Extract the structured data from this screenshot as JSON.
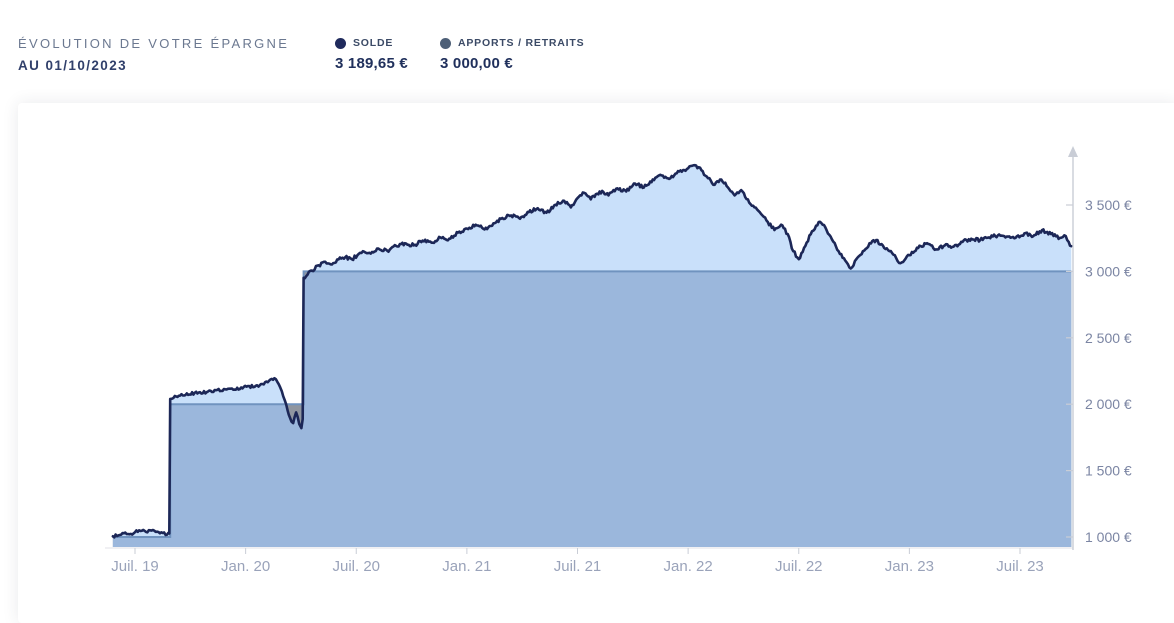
{
  "header": {
    "title": "ÉVOLUTION DE VOTRE ÉPARGNE",
    "subtitle": "AU 01/10/2023",
    "legend": [
      {
        "id": "solde",
        "label": "SOLDE",
        "value": "3 189,65 €",
        "color": "#1f2a5c"
      },
      {
        "id": "apports",
        "label": "APPORTS / RETRAITS",
        "value": "3 000,00 €",
        "color": "#4d5f77"
      }
    ]
  },
  "chart_data": {
    "type": "area",
    "title": "Évolution de votre épargne au 01/10/2023",
    "x_unit": "decimal_year",
    "x_range": [
      2019.4,
      2023.732
    ],
    "y_displayed_ticks_range": [
      1000,
      3500
    ],
    "grid": false,
    "legend_position": "top-outside",
    "y_axis_side": "right",
    "x_ticks": [
      {
        "t": 2019.5,
        "label": "Juil. 19"
      },
      {
        "t": 2020.0,
        "label": "Jan. 20"
      },
      {
        "t": 2020.5,
        "label": "Juil. 20"
      },
      {
        "t": 2021.0,
        "label": "Jan. 21"
      },
      {
        "t": 2021.5,
        "label": "Juil. 21"
      },
      {
        "t": 2022.0,
        "label": "Jan. 22"
      },
      {
        "t": 2022.5,
        "label": "Juil. 22"
      },
      {
        "t": 2023.0,
        "label": "Jan. 23"
      },
      {
        "t": 2023.5,
        "label": "Juil. 23"
      }
    ],
    "y_ticks": [
      {
        "value": 1000,
        "label": "1 000 €"
      },
      {
        "value": 1500,
        "label": "1 500 €"
      },
      {
        "value": 2000,
        "label": "2 000 €"
      },
      {
        "value": 2500,
        "label": "2 500 €"
      },
      {
        "value": 3000,
        "label": "3 000 €"
      },
      {
        "value": 3500,
        "label": "3 500 €"
      }
    ],
    "series": [
      {
        "name": "SOLDE",
        "current_value": 3189.65,
        "line_color": "#1c2757",
        "fill_above_apports": "#c9e0fa",
        "points": [
          [
            2019.4,
            1005
          ],
          [
            2019.425,
            1012
          ],
          [
            2019.45,
            1028
          ],
          [
            2019.475,
            1020
          ],
          [
            2019.5,
            1036
          ],
          [
            2019.525,
            1045
          ],
          [
            2019.55,
            1038
          ],
          [
            2019.575,
            1048
          ],
          [
            2019.6,
            1040
          ],
          [
            2019.625,
            1030
          ],
          [
            2019.645,
            1018
          ],
          [
            2019.655,
            1026
          ],
          [
            2019.659,
            2040
          ],
          [
            2019.68,
            2062
          ],
          [
            2019.71,
            2075
          ],
          [
            2019.74,
            2070
          ],
          [
            2019.77,
            2086
          ],
          [
            2019.8,
            2080
          ],
          [
            2019.83,
            2096
          ],
          [
            2019.86,
            2106
          ],
          [
            2019.89,
            2100
          ],
          [
            2019.92,
            2116
          ],
          [
            2019.95,
            2110
          ],
          [
            2019.98,
            2126
          ],
          [
            2020.01,
            2136
          ],
          [
            2020.04,
            2130
          ],
          [
            2020.07,
            2152
          ],
          [
            2020.1,
            2166
          ],
          [
            2020.13,
            2196
          ],
          [
            2020.15,
            2150
          ],
          [
            2020.17,
            2060
          ],
          [
            2020.19,
            1950
          ],
          [
            2020.2,
            1900
          ],
          [
            2020.215,
            1858
          ],
          [
            2020.228,
            1938
          ],
          [
            2020.242,
            1852
          ],
          [
            2020.252,
            1820
          ],
          [
            2020.258,
            1888
          ],
          [
            2020.262,
            2952
          ],
          [
            2020.28,
            2976
          ],
          [
            2020.3,
            3006
          ],
          [
            2020.33,
            3046
          ],
          [
            2020.36,
            3072
          ],
          [
            2020.39,
            3052
          ],
          [
            2020.42,
            3090
          ],
          [
            2020.45,
            3106
          ],
          [
            2020.48,
            3092
          ],
          [
            2020.505,
            3122
          ],
          [
            2020.53,
            3152
          ],
          [
            2020.56,
            3140
          ],
          [
            2020.6,
            3172
          ],
          [
            2020.64,
            3156
          ],
          [
            2020.68,
            3192
          ],
          [
            2020.72,
            3212
          ],
          [
            2020.76,
            3196
          ],
          [
            2020.8,
            3232
          ],
          [
            2020.84,
            3216
          ],
          [
            2020.88,
            3256
          ],
          [
            2020.92,
            3246
          ],
          [
            2020.96,
            3292
          ],
          [
            2021.0,
            3322
          ],
          [
            2021.04,
            3352
          ],
          [
            2021.08,
            3316
          ],
          [
            2021.12,
            3362
          ],
          [
            2021.16,
            3402
          ],
          [
            2021.2,
            3422
          ],
          [
            2021.24,
            3396
          ],
          [
            2021.28,
            3446
          ],
          [
            2021.32,
            3476
          ],
          [
            2021.36,
            3442
          ],
          [
            2021.4,
            3502
          ],
          [
            2021.44,
            3532
          ],
          [
            2021.47,
            3482
          ],
          [
            2021.5,
            3552
          ],
          [
            2021.53,
            3592
          ],
          [
            2021.56,
            3542
          ],
          [
            2021.6,
            3602
          ],
          [
            2021.64,
            3572
          ],
          [
            2021.68,
            3626
          ],
          [
            2021.72,
            3602
          ],
          [
            2021.76,
            3662
          ],
          [
            2021.8,
            3632
          ],
          [
            2021.84,
            3692
          ],
          [
            2021.88,
            3722
          ],
          [
            2021.92,
            3702
          ],
          [
            2021.96,
            3752
          ],
          [
            2022.0,
            3776
          ],
          [
            2022.03,
            3800
          ],
          [
            2022.06,
            3762
          ],
          [
            2022.09,
            3702
          ],
          [
            2022.12,
            3652
          ],
          [
            2022.15,
            3692
          ],
          [
            2022.18,
            3632
          ],
          [
            2022.21,
            3572
          ],
          [
            2022.24,
            3612
          ],
          [
            2022.27,
            3542
          ],
          [
            2022.3,
            3482
          ],
          [
            2022.33,
            3432
          ],
          [
            2022.36,
            3372
          ],
          [
            2022.39,
            3312
          ],
          [
            2022.42,
            3352
          ],
          [
            2022.45,
            3282
          ],
          [
            2022.475,
            3152
          ],
          [
            2022.5,
            3092
          ],
          [
            2022.53,
            3192
          ],
          [
            2022.56,
            3302
          ],
          [
            2022.59,
            3372
          ],
          [
            2022.62,
            3332
          ],
          [
            2022.65,
            3242
          ],
          [
            2022.68,
            3152
          ],
          [
            2022.71,
            3082
          ],
          [
            2022.735,
            3022
          ],
          [
            2022.76,
            3092
          ],
          [
            2022.79,
            3152
          ],
          [
            2022.82,
            3212
          ],
          [
            2022.85,
            3236
          ],
          [
            2022.88,
            3196
          ],
          [
            2022.91,
            3152
          ],
          [
            2022.94,
            3102
          ],
          [
            2022.96,
            3062
          ],
          [
            2023.0,
            3122
          ],
          [
            2023.04,
            3176
          ],
          [
            2023.08,
            3212
          ],
          [
            2023.12,
            3166
          ],
          [
            2023.16,
            3196
          ],
          [
            2023.2,
            3186
          ],
          [
            2023.24,
            3222
          ],
          [
            2023.28,
            3246
          ],
          [
            2023.32,
            3236
          ],
          [
            2023.36,
            3256
          ],
          [
            2023.4,
            3272
          ],
          [
            2023.44,
            3262
          ],
          [
            2023.48,
            3252
          ],
          [
            2023.52,
            3286
          ],
          [
            2023.56,
            3266
          ],
          [
            2023.6,
            3312
          ],
          [
            2023.64,
            3282
          ],
          [
            2023.68,
            3252
          ],
          [
            2023.7,
            3272
          ],
          [
            2023.72,
            3222
          ],
          [
            2023.732,
            3189.65
          ]
        ]
      },
      {
        "name": "APPORTS / RETRAITS",
        "current_value": 3000.0,
        "line_color": "#7093bf",
        "fill": "#9bb7dc",
        "fill_when_solde_below": "#9096a0",
        "step_points": [
          [
            2019.4,
            1000
          ],
          [
            2019.659,
            2000
          ],
          [
            2020.262,
            3000
          ],
          [
            2023.732,
            3000
          ]
        ]
      }
    ],
    "render": {
      "noise_amplitude_eur": 13,
      "noise_step_years": 0.006
    }
  },
  "colors": {
    "axis_line": "#c9cdd6",
    "x_axis_line": "#e0e2e7",
    "y_tick_label": "#7b85a3",
    "x_tick_label": "#9aa3ba",
    "title_text": "#6b7890",
    "subtitle_text": "#31406b"
  }
}
